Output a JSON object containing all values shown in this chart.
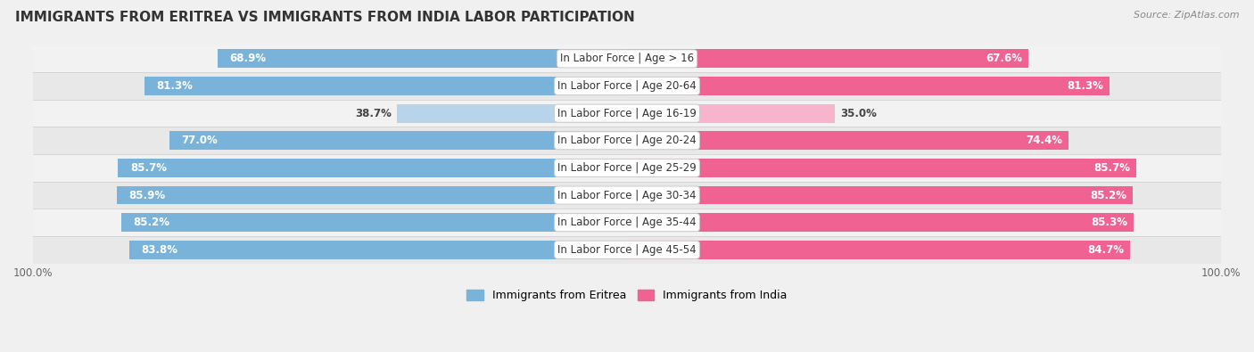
{
  "title": "IMMIGRANTS FROM ERITREA VS IMMIGRANTS FROM INDIA LABOR PARTICIPATION",
  "source": "Source: ZipAtlas.com",
  "categories": [
    "In Labor Force | Age > 16",
    "In Labor Force | Age 20-64",
    "In Labor Force | Age 16-19",
    "In Labor Force | Age 20-24",
    "In Labor Force | Age 25-29",
    "In Labor Force | Age 30-34",
    "In Labor Force | Age 35-44",
    "In Labor Force | Age 45-54"
  ],
  "eritrea_values": [
    68.9,
    81.3,
    38.7,
    77.0,
    85.7,
    85.9,
    85.2,
    83.8
  ],
  "india_values": [
    67.6,
    81.3,
    35.0,
    74.4,
    85.7,
    85.2,
    85.3,
    84.7
  ],
  "eritrea_color": "#7ab3d9",
  "eritrea_color_light": "#b8d4eb",
  "india_color": "#f06292",
  "india_color_light": "#f8b4cc",
  "bar_height": 0.68,
  "max_value": 100.0,
  "bg_color": "#f0f0f0",
  "row_bg_colors": [
    "#f2f2f2",
    "#e8e8e8"
  ],
  "title_fontsize": 11,
  "label_fontsize": 8.5,
  "value_fontsize": 8.5,
  "legend_fontsize": 9
}
